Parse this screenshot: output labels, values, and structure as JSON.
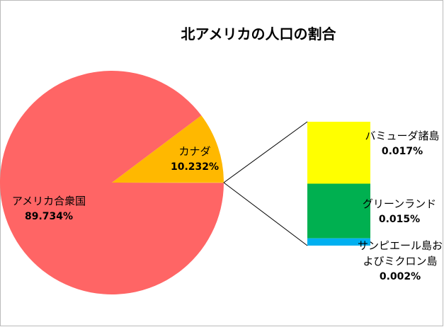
{
  "chart_data": {
    "type": "pie_of_bar",
    "title": "北アメリカの人口の割合",
    "pie": {
      "labels": [
        "アメリカ合衆国",
        "カナダ"
      ],
      "values": [
        89.734,
        10.232
      ],
      "value_labels": [
        "89.734%",
        "10.232%"
      ],
      "colors": [
        "#ff6565",
        "#ffb800"
      ]
    },
    "bar": {
      "labels": [
        "バミューダ諸島",
        "グリーンランド",
        "サンピエール島およびミクロン島"
      ],
      "values": [
        0.017,
        0.015,
        0.002
      ],
      "value_labels": [
        "0.017%",
        "0.015%",
        "0.002%"
      ],
      "colors": [
        "#ffff00",
        "#00b050",
        "#00b0f0"
      ]
    }
  }
}
